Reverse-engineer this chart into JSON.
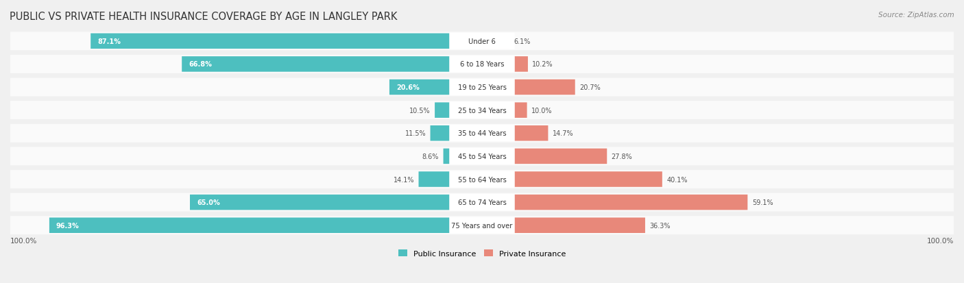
{
  "title": "PUBLIC VS PRIVATE HEALTH INSURANCE COVERAGE BY AGE IN LANGLEY PARK",
  "source": "Source: ZipAtlas.com",
  "categories": [
    "Under 6",
    "6 to 18 Years",
    "19 to 25 Years",
    "25 to 34 Years",
    "35 to 44 Years",
    "45 to 54 Years",
    "55 to 64 Years",
    "65 to 74 Years",
    "75 Years and over"
  ],
  "public_values": [
    87.1,
    66.8,
    20.6,
    10.5,
    11.5,
    8.6,
    14.1,
    65.0,
    96.3
  ],
  "private_values": [
    6.1,
    10.2,
    20.7,
    10.0,
    14.7,
    27.8,
    40.1,
    59.1,
    36.3
  ],
  "public_color": "#4DBFBF",
  "private_color": "#E8887A",
  "background_color": "#F0F0F0",
  "row_bg_color": "#FAFAFA",
  "center_label_bg": "#FFFFFF",
  "axis_label": "100.0%",
  "max_value": 100.0,
  "legend_public": "Public Insurance",
  "legend_private": "Private Insurance"
}
